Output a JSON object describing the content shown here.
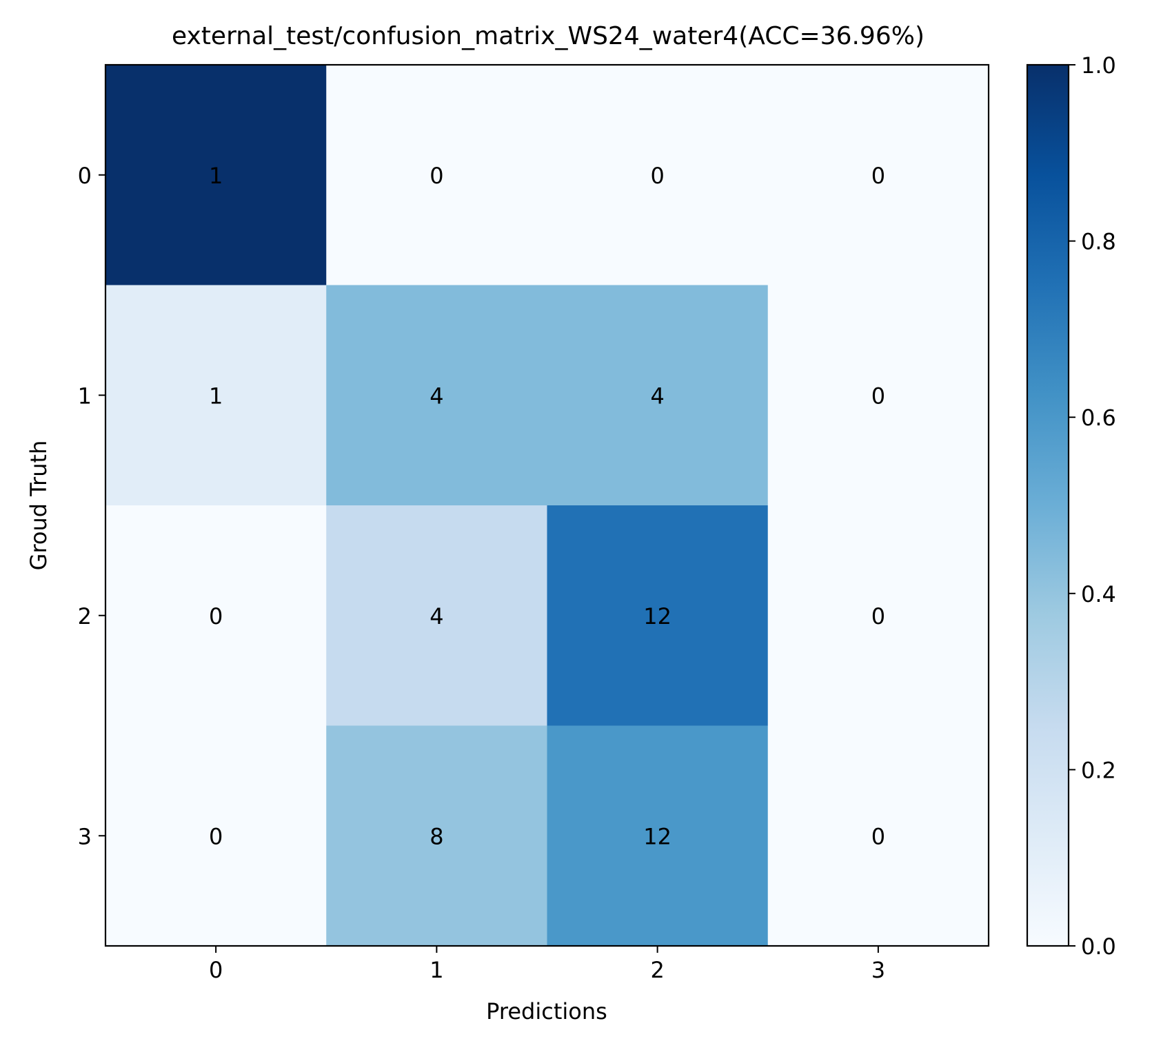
{
  "chart_data": {
    "type": "heatmap",
    "title": "external_test/confusion_matrix_WS24_water4(ACC=36.96%)",
    "xlabel": "Predictions",
    "ylabel": "Groud Truth",
    "x_categories": [
      "0",
      "1",
      "2",
      "3"
    ],
    "y_categories": [
      "0",
      "1",
      "2",
      "3"
    ],
    "values": [
      [
        1,
        0,
        0,
        0
      ],
      [
        1,
        4,
        4,
        0
      ],
      [
        0,
        4,
        12,
        0
      ],
      [
        0,
        8,
        12,
        0
      ]
    ],
    "normalized_values": [
      [
        1.0,
        0.0,
        0.0,
        0.0
      ],
      [
        0.111,
        0.444,
        0.444,
        0.0
      ],
      [
        0.0,
        0.25,
        0.75,
        0.0
      ],
      [
        0.0,
        0.4,
        0.6,
        0.0
      ]
    ],
    "colormap": "Blues",
    "colorbar": {
      "range": [
        0.0,
        1.0
      ],
      "ticks": [
        "0.0",
        "0.2",
        "0.4",
        "0.6",
        "0.8",
        "1.0"
      ]
    },
    "grid": false
  }
}
